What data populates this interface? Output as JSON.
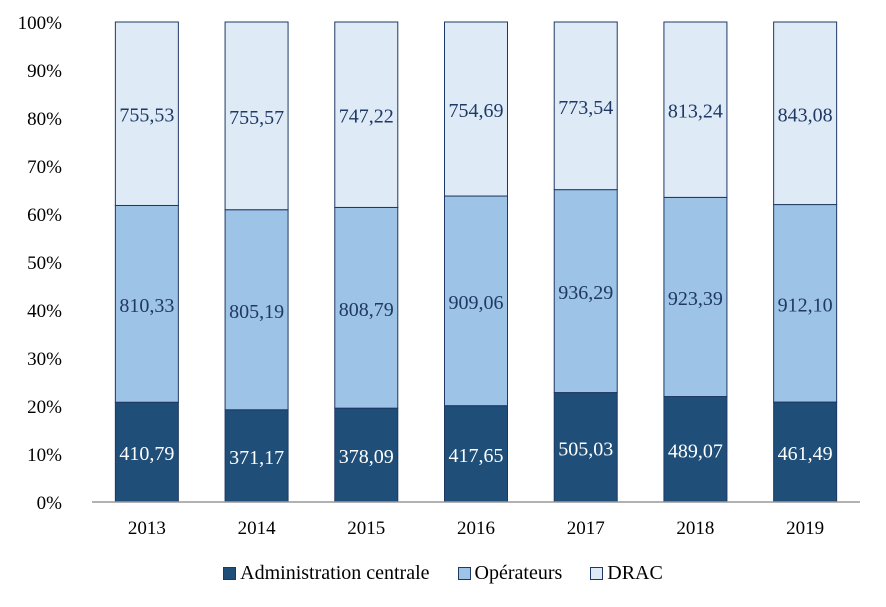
{
  "chart_data": {
    "type": "bar",
    "stacked": "percent",
    "categories": [
      "2013",
      "2014",
      "2015",
      "2016",
      "2017",
      "2018",
      "2019"
    ],
    "series": [
      {
        "name": "Administration centrale",
        "color": "#1F4E79",
        "label_color": "#FFFFFF",
        "values": [
          410.79,
          371.17,
          378.09,
          417.65,
          505.03,
          489.07,
          461.49
        ],
        "labels": [
          "410,79",
          "371,17",
          "378,09",
          "417,65",
          "505,03",
          "489,07",
          "461,49"
        ]
      },
      {
        "name": "Opérateurs",
        "color": "#9DC3E6",
        "label_color": "#1F3864",
        "values": [
          810.33,
          805.19,
          808.79,
          909.06,
          936.29,
          923.39,
          912.1
        ],
        "labels": [
          "810,33",
          "805,19",
          "808,79",
          "909,06",
          "936,29",
          "923,39",
          "912,10"
        ]
      },
      {
        "name": "DRAC",
        "color": "#DEEBF7",
        "label_color": "#1F3864",
        "values": [
          755.53,
          755.57,
          747.22,
          754.69,
          773.54,
          813.24,
          843.08
        ],
        "labels": [
          "755,53",
          "755,57",
          "747,22",
          "754,69",
          "773,54",
          "813,24",
          "843,08"
        ]
      }
    ],
    "yticks": [
      "0%",
      "10%",
      "20%",
      "30%",
      "40%",
      "50%",
      "60%",
      "70%",
      "80%",
      "90%",
      "100%"
    ],
    "ylim": [
      0,
      100
    ],
    "grid": false,
    "legend": "bottom"
  }
}
